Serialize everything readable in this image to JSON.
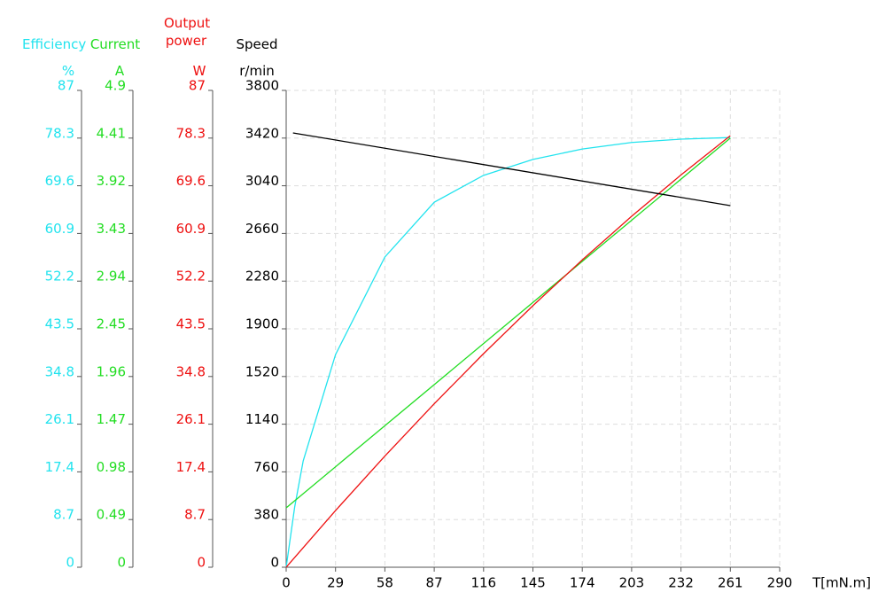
{
  "chart_data": {
    "type": "line",
    "x_label": "T[mN.m]",
    "xlim": [
      0,
      290
    ],
    "xticks": [
      0,
      29,
      58,
      87,
      116,
      145,
      174,
      203,
      232,
      261,
      290
    ],
    "grid": true,
    "axes": [
      {
        "name": "Efficiency",
        "unit": "%",
        "color": "#22e3ee",
        "ylim": [
          0,
          87
        ],
        "yticks": [
          0,
          8.7,
          17.4,
          26.1,
          34.8,
          43.5,
          52.2,
          60.9,
          69.6,
          78.3,
          87
        ]
      },
      {
        "name": "Current",
        "unit": "A",
        "color": "#22dd22",
        "ylim": [
          0,
          4.9
        ],
        "yticks": [
          0,
          0.49,
          0.98,
          1.47,
          1.96,
          2.45,
          2.94,
          3.43,
          3.92,
          4.41,
          4.9
        ]
      },
      {
        "name": "Output power",
        "unit": "W",
        "color": "#ee1111",
        "ylim": [
          0,
          87
        ],
        "yticks": [
          0,
          8.7,
          17.4,
          26.1,
          34.8,
          43.5,
          52.2,
          60.9,
          69.6,
          78.3,
          87
        ]
      },
      {
        "name": "Speed",
        "unit": "r/min",
        "color": "#000000",
        "ylim": [
          0,
          3800
        ],
        "yticks": [
          0,
          380,
          760,
          1140,
          1520,
          1900,
          2280,
          2660,
          3040,
          3420,
          3800
        ]
      }
    ],
    "series": [
      {
        "axis": 0,
        "color": "#22e3ee",
        "x": [
          0,
          5,
          10,
          29,
          58,
          87,
          116,
          145,
          174,
          203,
          232,
          261
        ],
        "values": [
          0,
          11,
          19.4,
          38.8,
          56.6,
          66.6,
          71.5,
          74.4,
          76.3,
          77.5,
          78.1,
          78.4
        ]
      },
      {
        "axis": 1,
        "color": "#22dd22",
        "x": [
          0,
          261
        ],
        "values": [
          0.61,
          4.41
        ]
      },
      {
        "axis": 2,
        "color": "#ee1111",
        "x": [
          0,
          29,
          58,
          87,
          116,
          145,
          174,
          203,
          232,
          261
        ],
        "values": [
          0,
          10.34,
          20.28,
          29.83,
          38.97,
          47.72,
          56.07,
          64.03,
          71.57,
          78.74
        ]
      },
      {
        "axis": 3,
        "color": "#000000",
        "x": [
          4,
          261
        ],
        "values": [
          3461,
          2882
        ]
      }
    ]
  }
}
